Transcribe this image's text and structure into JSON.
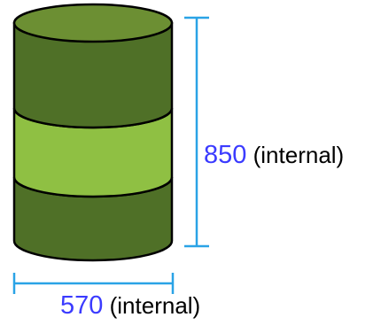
{
  "colors": {
    "barrel_dark": "#4f7027",
    "barrel_light": "#8fc043",
    "barrel_top": "#6c8f33",
    "outline": "#000000",
    "dimension_line": "#2aa3e6",
    "dimension_value": "#3b3bff"
  },
  "dimensions": {
    "height": {
      "value": "850",
      "note": "(internal)"
    },
    "width": {
      "value": "570",
      "note": "(internal)"
    }
  }
}
